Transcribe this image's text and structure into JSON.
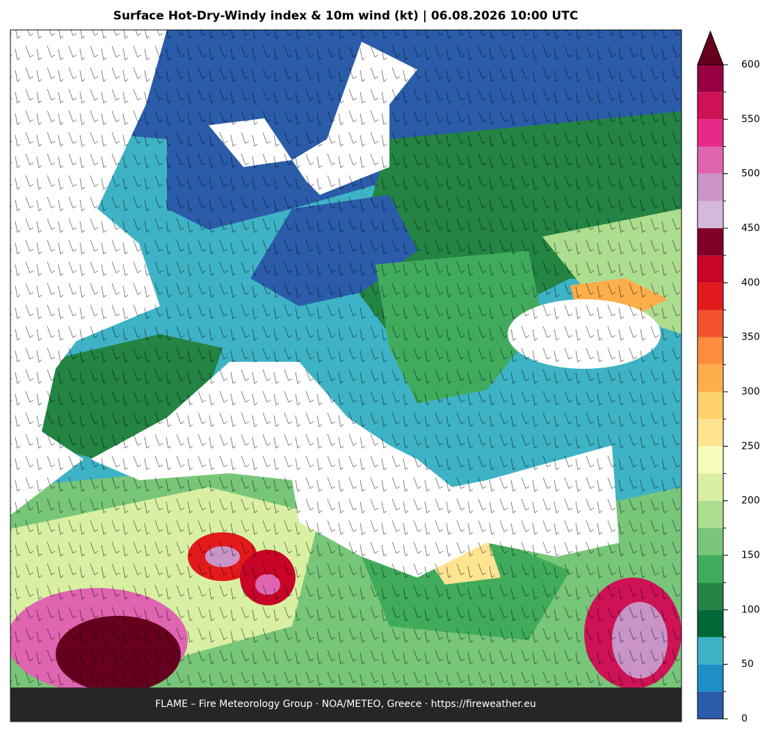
{
  "title": "Surface Hot-Dry-Windy index & 10m wind (kt)  |  06.08.2026 10:00 UTC",
  "footer": "FLAME – Fire Meteorology Group · NOA/METEO, Greece · https://fireweather.eu",
  "colorbar": {
    "levels": [
      0,
      25,
      50,
      75,
      100,
      125,
      150,
      175,
      200,
      225,
      250,
      275,
      300,
      325,
      350,
      375,
      400,
      425,
      450,
      475,
      500,
      525,
      550,
      575,
      600
    ],
    "colors": [
      "#2a5caa",
      "#1e8fc4",
      "#3fb3c6",
      "#006837",
      "#238443",
      "#41ab5d",
      "#78c679",
      "#addd8e",
      "#d9f0a3",
      "#f7fcb9",
      "#fee391",
      "#fed16a",
      "#fdae4b",
      "#fd8d3c",
      "#f4522f",
      "#e31a1c",
      "#c80427",
      "#800026",
      "#d4b9da",
      "#c994c7",
      "#df65b0",
      "#e7298a",
      "#ce1256",
      "#980043"
    ],
    "extend_color": "#67001f",
    "ticks": [
      0,
      50,
      100,
      150,
      200,
      250,
      300,
      350,
      400,
      450,
      500,
      550,
      600
    ]
  }
}
